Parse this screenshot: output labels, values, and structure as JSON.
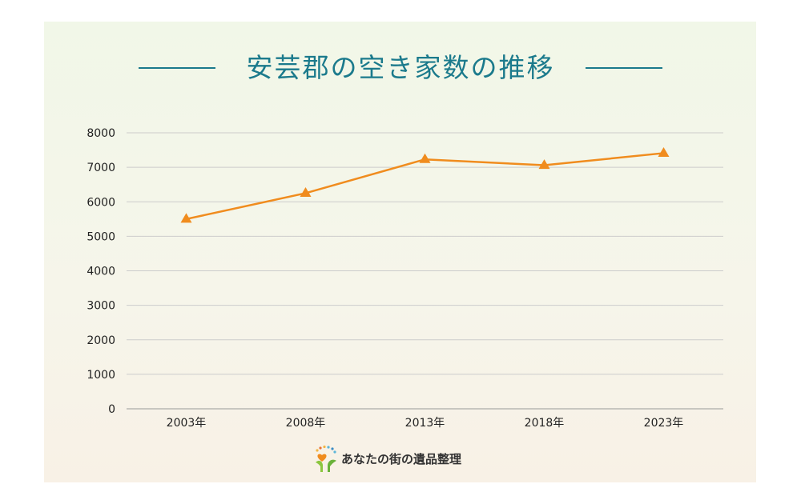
{
  "colors": {
    "title": "#1b7a8c",
    "line": "#f08c1e",
    "grid": "#cccccc",
    "axis_text": "#222222"
  },
  "title": "安芸郡の空き家数の推移",
  "brand": {
    "logo_icon": "heart-sprout-icon",
    "name": "あなたの街の遺品整理"
  },
  "chart_data": {
    "type": "line",
    "title": "安芸郡の空き家数の推移",
    "categories": [
      "2003年",
      "2008年",
      "2013年",
      "2018年",
      "2023年"
    ],
    "series": [
      {
        "values": [
          5500,
          6250,
          7230,
          7060,
          7410
        ],
        "marker": "triangle"
      }
    ],
    "ylim": [
      0,
      8000
    ],
    "yticks": [
      0,
      1000,
      2000,
      3000,
      4000,
      5000,
      6000,
      7000,
      8000
    ],
    "grid": true,
    "legend": "none",
    "xlabel": "",
    "ylabel": ""
  }
}
